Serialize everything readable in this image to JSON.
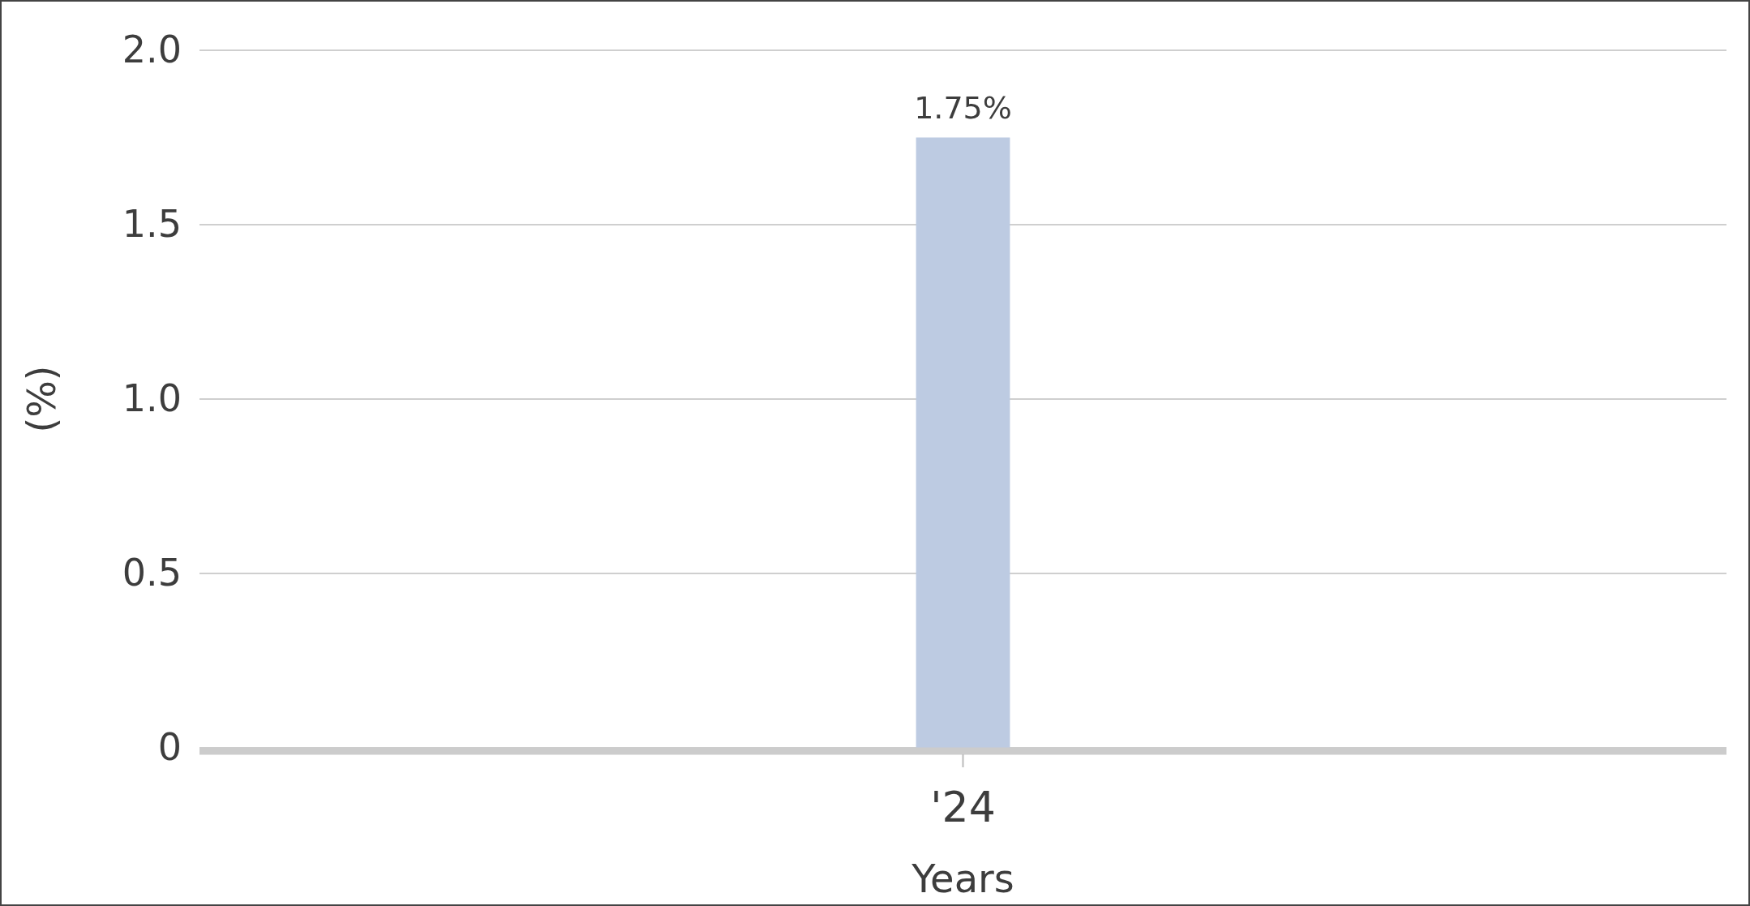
{
  "chart_data": {
    "type": "bar",
    "xlabel": "Years",
    "ylabel": "(%)",
    "categories": [
      "'24"
    ],
    "values": [
      1.75
    ],
    "color": "#bdcbe2",
    "value_labels": [
      "1.75%"
    ],
    "ylim": [
      0,
      2
    ],
    "yticks": [
      0,
      0.5,
      {
        "value": 1,
        "label": "1.0"
      },
      1.5,
      {
        "value": 2,
        "label": "2.0"
      }
    ],
    "grid": "y"
  }
}
